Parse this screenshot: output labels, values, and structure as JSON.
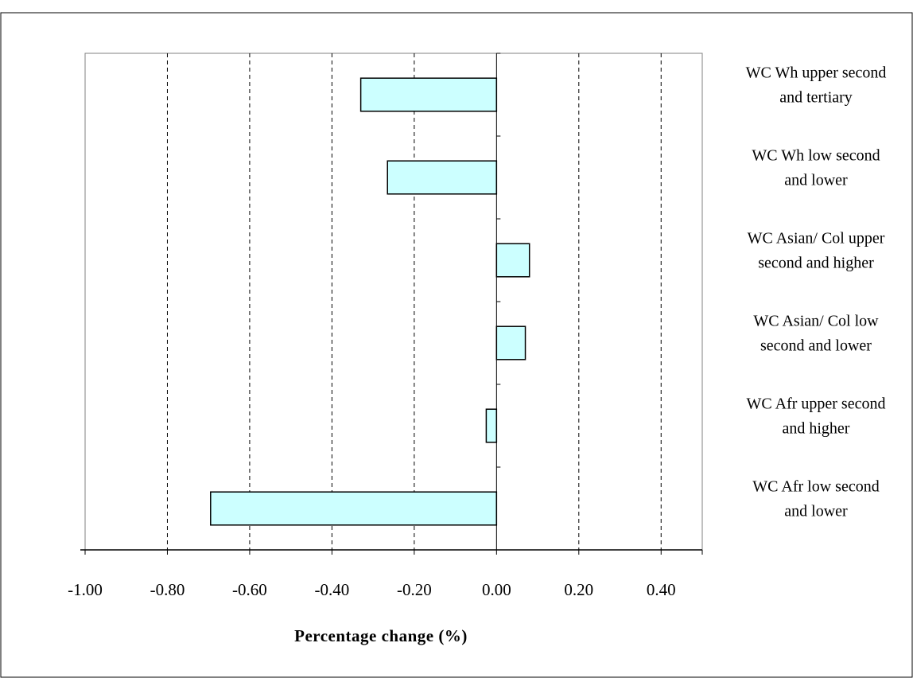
{
  "chart_data": {
    "type": "bar",
    "orientation": "horizontal",
    "categories": [
      [
        "WC Wh upper second",
        "and tertiary"
      ],
      [
        "WC Wh low second",
        "and lower"
      ],
      [
        "WC Asian/ Col upper",
        "second and higher"
      ],
      [
        "WC Asian/ Col low",
        "second and lower"
      ],
      [
        "WC Afr upper second",
        "and higher"
      ],
      [
        "WC Afr low second",
        "and lower"
      ]
    ],
    "values": [
      -0.33,
      -0.265,
      0.08,
      0.07,
      -0.025,
      -0.695
    ],
    "xlim": [
      -1.0,
      0.5
    ],
    "xticks": [
      -1.0,
      -0.8,
      -0.6,
      -0.4,
      -0.2,
      0.0,
      0.2,
      0.4
    ],
    "xtick_labels": [
      "-1.00",
      "-0.80",
      "-0.60",
      "-0.40",
      "-0.20",
      "0.00",
      "0.20",
      "0.40"
    ],
    "xlabel": "Percentage change (%)",
    "ylabel": "",
    "title": "",
    "grid": "vertical-dashed",
    "legend": "none",
    "colors": {
      "bar_fill": "#ccffff",
      "bar_stroke": "#000000",
      "grid": "#000000"
    }
  }
}
